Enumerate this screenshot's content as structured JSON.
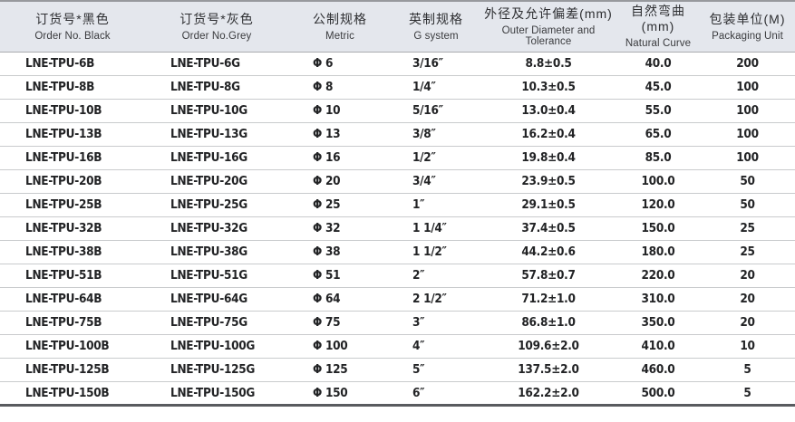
{
  "table": {
    "columns": [
      {
        "zh": "订货号*黑色",
        "en": "Order No. Black"
      },
      {
        "zh": "订货号*灰色",
        "en": "Order No.Grey"
      },
      {
        "zh": "公制规格",
        "en": "Metric"
      },
      {
        "zh": "英制规格",
        "en": "G system"
      },
      {
        "zh": "外径及允许偏差(mm)",
        "en": "Outer Diameter and Tolerance"
      },
      {
        "zh": "自然弯曲(mm)",
        "en": "Natural Curve"
      },
      {
        "zh": "包装单位(M)",
        "en": "Packaging Unit"
      }
    ],
    "rows": [
      [
        "LNE-TPU-6B",
        "LNE-TPU-6G",
        "Φ 6",
        "3/16″",
        "8.8±0.5",
        "40.0",
        "200"
      ],
      [
        "LNE-TPU-8B",
        "LNE-TPU-8G",
        "Φ 8",
        "1/4″",
        "10.3±0.5",
        "45.0",
        "100"
      ],
      [
        "LNE-TPU-10B",
        "LNE-TPU-10G",
        "Φ 10",
        "5/16″",
        "13.0±0.4",
        "55.0",
        "100"
      ],
      [
        "LNE-TPU-13B",
        "LNE-TPU-13G",
        "Φ 13",
        "3/8″",
        "16.2±0.4",
        "65.0",
        "100"
      ],
      [
        "LNE-TPU-16B",
        "LNE-TPU-16G",
        "Φ 16",
        "1/2″",
        "19.8±0.4",
        "85.0",
        "100"
      ],
      [
        "LNE-TPU-20B",
        "LNE-TPU-20G",
        "Φ 20",
        "3/4″",
        "23.9±0.5",
        "100.0",
        "50"
      ],
      [
        "LNE-TPU-25B",
        "LNE-TPU-25G",
        "Φ 25",
        "1″",
        "29.1±0.5",
        "120.0",
        "50"
      ],
      [
        "LNE-TPU-32B",
        "LNE-TPU-32G",
        "Φ 32",
        "1 1/4″",
        "37.4±0.5",
        "150.0",
        "25"
      ],
      [
        "LNE-TPU-38B",
        "LNE-TPU-38G",
        "Φ 38",
        "1 1/2″",
        "44.2±0.6",
        "180.0",
        "25"
      ],
      [
        "LNE-TPU-51B",
        "LNE-TPU-51G",
        "Φ 51",
        "2″",
        "57.8±0.7",
        "220.0",
        "20"
      ],
      [
        "LNE-TPU-64B",
        "LNE-TPU-64G",
        "Φ 64",
        "2 1/2″",
        "71.2±1.0",
        "310.0",
        "20"
      ],
      [
        "LNE-TPU-75B",
        "LNE-TPU-75G",
        "Φ 75",
        "3″",
        "86.8±1.0",
        "350.0",
        "20"
      ],
      [
        "LNE-TPU-100B",
        "LNE-TPU-100G",
        "Φ 100",
        "4″",
        "109.6±2.0",
        "410.0",
        "10"
      ],
      [
        "LNE-TPU-125B",
        "LNE-TPU-125G",
        "Φ 125",
        "5″",
        "137.5±2.0",
        "460.0",
        "5"
      ],
      [
        "LNE-TPU-150B",
        "LNE-TPU-150G",
        "Φ 150",
        "6″",
        "162.2±2.0",
        "500.0",
        "5"
      ]
    ],
    "colors": {
      "header_background": "#e4e7ed",
      "top_border": "#97999d",
      "header_divider": "#aaacb0",
      "row_divider": "#c9cbcd",
      "bottom_border": "#595b5f",
      "header_text": "#2e2f32",
      "cell_text": "#222325"
    }
  }
}
